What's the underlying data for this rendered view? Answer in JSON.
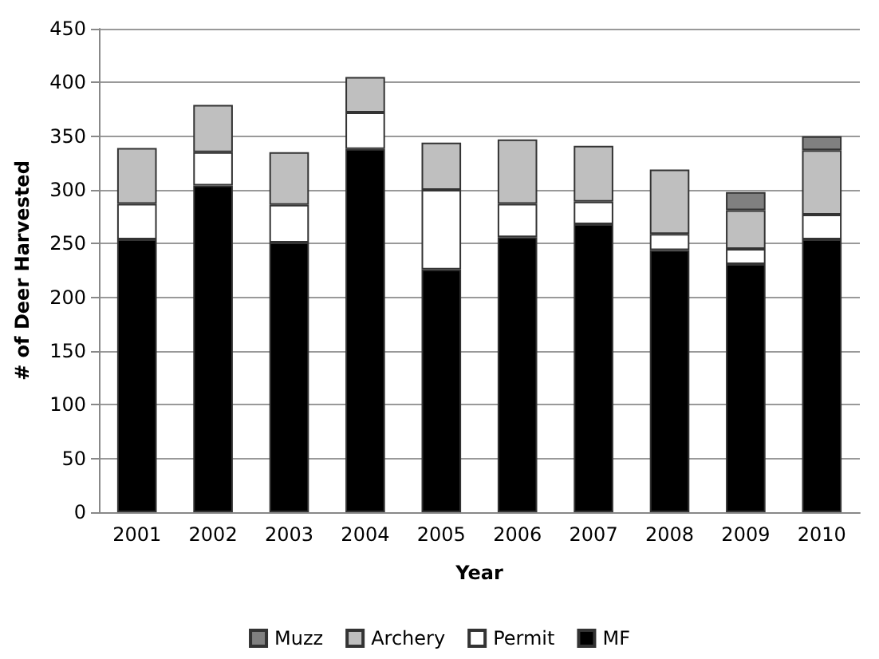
{
  "chart_data": {
    "type": "bar",
    "xlabel": "Year",
    "ylabel": "# of Deer Harvested",
    "categories": [
      "2001",
      "2002",
      "2003",
      "2004",
      "2005",
      "2006",
      "2007",
      "2008",
      "2009",
      "2010"
    ],
    "stacked": true,
    "series": [
      {
        "name": "MF",
        "color": "#000000",
        "values": [
          254,
          304,
          251,
          338,
          226,
          256,
          268,
          244,
          231,
          254
        ]
      },
      {
        "name": "Permit",
        "color": "#ffffff",
        "values": [
          33,
          31,
          35,
          34,
          74,
          31,
          21,
          15,
          14,
          23
        ]
      },
      {
        "name": "Archery",
        "color": "#bfbfbf",
        "values": [
          52,
          44,
          49,
          33,
          44,
          60,
          52,
          60,
          36,
          60
        ]
      },
      {
        "name": "Muzz",
        "color": "#808080",
        "values": [
          null,
          null,
          null,
          null,
          null,
          null,
          null,
          null,
          17,
          13
        ]
      }
    ],
    "ylim": [
      0,
      450
    ],
    "yticks": [
      0,
      50,
      100,
      150,
      200,
      250,
      300,
      350,
      400,
      450
    ],
    "grid": "y",
    "legend": "bottom"
  }
}
